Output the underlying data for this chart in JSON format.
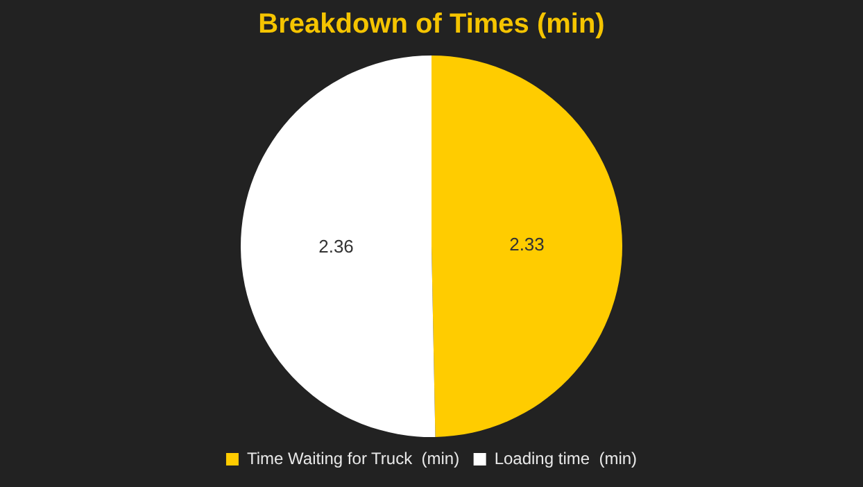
{
  "chart_data": {
    "type": "pie",
    "title": "Breakdown of Times (min)",
    "categories": [
      "Time Waiting for Truck  (min)",
      "Loading time  (min)"
    ],
    "values": [
      2.33,
      2.36
    ],
    "colors": [
      "#ffcc00",
      "#ffffff"
    ],
    "data_labels": true,
    "legend": "bottom"
  }
}
